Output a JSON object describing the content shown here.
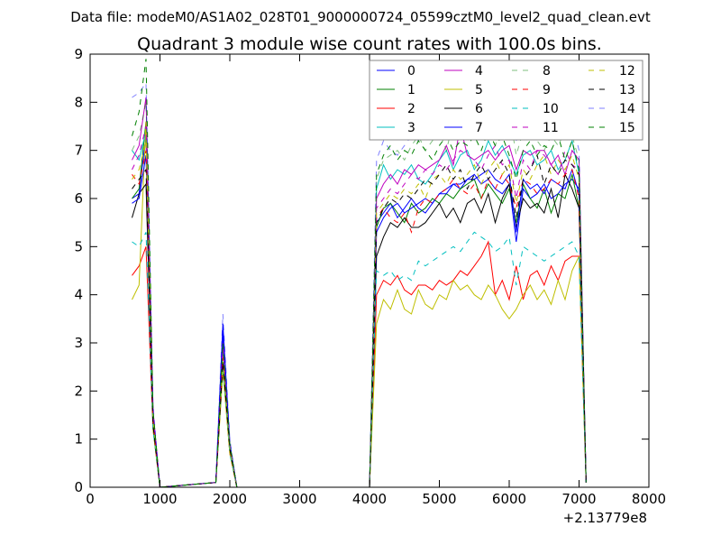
{
  "suptitle": "Data file: modeM0/AS1A02_028T01_9000000724_05599cztM0_level2_quad_clean.evt",
  "chart_data": {
    "type": "line",
    "title": "Quadrant 3 module wise count rates with 100.0s bins.",
    "xlabel": "",
    "ylabel": "",
    "xlim": [
      0,
      8000
    ],
    "ylim": [
      0,
      9
    ],
    "x_offset_label": "+2.13779e8",
    "xticks": [
      0,
      1000,
      2000,
      3000,
      4000,
      5000,
      6000,
      7000,
      8000
    ],
    "xtick_labels": [
      "0",
      "1000",
      "2000",
      "3000",
      "4000",
      "5000",
      "6000",
      "7000",
      "8000"
    ],
    "yticks": [
      0,
      1,
      2,
      3,
      4,
      5,
      6,
      7,
      8,
      9
    ],
    "ytick_labels": [
      "0",
      "1",
      "2",
      "3",
      "4",
      "5",
      "6",
      "7",
      "8",
      "9"
    ],
    "grid": false,
    "legend_placement": "top-right",
    "x": [
      600,
      700,
      800,
      900,
      1000,
      1800,
      1900,
      2000,
      2100,
      4000,
      4100,
      4200,
      4300,
      4400,
      4500,
      4600,
      4700,
      4800,
      4900,
      5000,
      5100,
      5200,
      5300,
      5400,
      5500,
      5600,
      5700,
      5800,
      5900,
      6000,
      6100,
      6200,
      6300,
      6400,
      6500,
      6600,
      6700,
      6800,
      6900,
      7000,
      7100
    ],
    "series": [
      {
        "name": "0",
        "color": "#0000ff",
        "dashed": false,
        "opacity": 1,
        "values": [
          6.0,
          6.1,
          7.3,
          1.5,
          0,
          0.1,
          3.2,
          0.9,
          0,
          0,
          5.5,
          5.7,
          5.9,
          5.6,
          5.8,
          6.0,
          5.8,
          5.7,
          5.9,
          6.1,
          6.2,
          6.3,
          6.2,
          6.4,
          6.5,
          6.3,
          6.4,
          6.2,
          6.1,
          6.3,
          5.1,
          6.2,
          6.0,
          6.1,
          6.3,
          6.0,
          6.1,
          6.3,
          6.4,
          6.2,
          0.1
        ]
      },
      {
        "name": "1",
        "color": "#008000",
        "dashed": false,
        "opacity": 1,
        "values": [
          6.0,
          6.2,
          7.6,
          1.3,
          0,
          0.1,
          2.6,
          0.8,
          0,
          0,
          5.4,
          5.8,
          5.9,
          5.7,
          5.5,
          5.9,
          5.7,
          5.8,
          6.0,
          5.9,
          6.1,
          6.0,
          6.2,
          6.3,
          6.4,
          6.0,
          6.3,
          6.1,
          5.9,
          6.2,
          5.5,
          6.3,
          6.0,
          5.8,
          6.2,
          5.7,
          6.1,
          6.0,
          6.5,
          5.8,
          0.1
        ]
      },
      {
        "name": "2",
        "color": "#ff0000",
        "dashed": false,
        "opacity": 1,
        "values": [
          4.4,
          4.6,
          5.0,
          1.2,
          0,
          0.1,
          2.5,
          0.7,
          0,
          0,
          4.0,
          4.3,
          4.2,
          4.4,
          4.1,
          4.0,
          4.2,
          4.2,
          4.1,
          4.3,
          4.2,
          4.3,
          4.5,
          4.4,
          4.6,
          4.8,
          5.1,
          4.0,
          4.3,
          3.9,
          4.6,
          3.9,
          4.4,
          4.5,
          4.2,
          4.6,
          4.3,
          4.7,
          4.8,
          4.8,
          0.1
        ]
      },
      {
        "name": "3",
        "color": "#00bfbf",
        "dashed": false,
        "opacity": 1,
        "values": [
          7.0,
          6.8,
          7.4,
          1.5,
          0,
          0.1,
          2.9,
          0.9,
          0,
          0,
          6.2,
          6.7,
          6.4,
          6.6,
          6.5,
          6.7,
          6.4,
          6.3,
          6.5,
          6.8,
          7.0,
          6.6,
          6.9,
          7.0,
          6.6,
          6.8,
          7.2,
          6.9,
          7.1,
          6.8,
          6.5,
          6.9,
          7.0,
          6.7,
          6.8,
          7.0,
          6.6,
          6.8,
          7.2,
          6.5,
          0.1
        ]
      },
      {
        "name": "4",
        "color": "#bf00bf",
        "dashed": false,
        "opacity": 1,
        "values": [
          6.8,
          7.1,
          8.1,
          1.6,
          0,
          0.1,
          3.0,
          0.9,
          0,
          0,
          6.0,
          6.3,
          6.5,
          6.3,
          6.6,
          6.5,
          6.7,
          6.6,
          6.7,
          6.8,
          7.1,
          6.7,
          7.5,
          6.9,
          6.8,
          6.9,
          7.0,
          6.8,
          7.0,
          7.1,
          6.6,
          7.0,
          6.9,
          7.0,
          7.0,
          6.7,
          6.9,
          6.5,
          7.0,
          6.8,
          0.1
        ]
      },
      {
        "name": "5",
        "color": "#bfbf00",
        "dashed": false,
        "opacity": 1,
        "values": [
          3.9,
          4.2,
          7.6,
          1.2,
          0,
          0.1,
          2.4,
          0.7,
          0,
          0,
          3.4,
          3.9,
          3.7,
          4.1,
          3.7,
          3.6,
          4.1,
          3.8,
          3.7,
          4.0,
          3.9,
          4.3,
          4.1,
          4.2,
          4.0,
          3.9,
          4.2,
          4.0,
          3.7,
          3.5,
          3.7,
          4.0,
          4.2,
          3.9,
          4.1,
          3.8,
          4.3,
          3.9,
          4.5,
          4.8,
          0.1
        ]
      },
      {
        "name": "6",
        "color": "#000000",
        "dashed": false,
        "opacity": 1,
        "values": [
          5.6,
          6.1,
          6.3,
          1.3,
          0,
          0.1,
          2.6,
          0.8,
          0,
          0,
          4.8,
          5.2,
          5.5,
          5.4,
          5.6,
          5.4,
          5.4,
          5.5,
          5.7,
          5.9,
          5.6,
          5.8,
          5.5,
          5.9,
          6.0,
          5.7,
          6.1,
          5.5,
          6.0,
          6.3,
          5.4,
          6.0,
          5.8,
          5.9,
          5.7,
          6.2,
          5.6,
          6.5,
          6.2,
          5.8,
          0.1
        ]
      },
      {
        "name": "7",
        "color": "#0000ff",
        "dashed": false,
        "opacity": 1,
        "values": [
          5.9,
          6.0,
          6.9,
          1.4,
          0,
          0.1,
          3.4,
          0.9,
          0,
          0,
          5.3,
          5.6,
          5.8,
          5.9,
          5.7,
          5.8,
          5.9,
          6.0,
          5.9,
          6.1,
          6.1,
          6.3,
          6.3,
          6.4,
          6.4,
          6.5,
          6.6,
          6.4,
          6.3,
          6.5,
          5.3,
          6.4,
          6.2,
          6.3,
          6.1,
          6.4,
          6.3,
          6.2,
          6.6,
          6.1,
          0.1
        ]
      },
      {
        "name": "8",
        "color": "#008000",
        "dashed": true,
        "opacity": 0.5,
        "values": [
          7.0,
          7.3,
          8.0,
          1.5,
          0,
          0.1,
          2.8,
          0.9,
          0,
          0,
          6.4,
          6.8,
          6.9,
          7.0,
          6.8,
          7.1,
          7.3,
          7.0,
          7.2,
          7.4,
          7.0,
          7.6,
          7.9,
          8.3,
          7.6,
          7.2,
          7.4,
          7.1,
          7.5,
          7.8,
          6.9,
          7.4,
          7.6,
          7.2,
          7.0,
          7.3,
          7.1,
          7.4,
          7.3,
          6.8,
          0.1
        ]
      },
      {
        "name": "9",
        "color": "#ff0000",
        "dashed": true,
        "opacity": 1,
        "values": [
          6.5,
          6.3,
          7.0,
          1.4,
          0,
          0.1,
          2.7,
          0.8,
          0,
          0,
          5.6,
          5.8,
          5.6,
          5.5,
          5.7,
          5.3,
          5.8,
          6.0,
          5.9,
          6.1,
          6.2,
          6.4,
          6.2,
          6.1,
          6.3,
          6.0,
          6.4,
          6.2,
          6.5,
          6.3,
          5.8,
          6.4,
          6.3,
          6.1,
          6.2,
          6.4,
          6.3,
          6.5,
          6.6,
          6.0,
          0.1
        ]
      },
      {
        "name": "10",
        "color": "#00bfbf",
        "dashed": true,
        "opacity": 1,
        "values": [
          5.1,
          5.0,
          5.3,
          1.2,
          0,
          0.1,
          2.5,
          0.7,
          0,
          0,
          4.5,
          4.4,
          4.5,
          4.3,
          4.4,
          4.3,
          4.7,
          4.6,
          4.7,
          4.8,
          4.9,
          5.0,
          4.9,
          5.1,
          5.3,
          5.2,
          5.1,
          4.9,
          5.0,
          5.2,
          4.2,
          5.0,
          4.9,
          4.8,
          4.7,
          4.8,
          4.9,
          5.0,
          5.1,
          4.8,
          0.1
        ]
      },
      {
        "name": "11",
        "color": "#bf00bf",
        "dashed": true,
        "opacity": 1,
        "values": [
          6.6,
          6.9,
          7.5,
          1.5,
          0,
          0.1,
          2.9,
          0.9,
          0,
          0,
          5.8,
          6.0,
          6.2,
          6.1,
          6.3,
          6.5,
          6.4,
          6.6,
          6.5,
          6.7,
          6.6,
          6.8,
          7.0,
          6.9,
          6.8,
          6.6,
          6.9,
          7.1,
          6.7,
          6.8,
          6.0,
          6.8,
          6.6,
          7.0,
          6.9,
          6.7,
          6.5,
          7.0,
          6.7,
          6.6,
          0.1
        ]
      },
      {
        "name": "12",
        "color": "#bfbf00",
        "dashed": true,
        "opacity": 1,
        "values": [
          6.4,
          6.6,
          7.2,
          1.4,
          0,
          0.1,
          2.6,
          0.8,
          0,
          0,
          5.7,
          5.9,
          6.1,
          6.0,
          6.2,
          6.1,
          6.3,
          6.0,
          6.4,
          6.5,
          6.3,
          6.6,
          6.4,
          6.5,
          6.7,
          6.3,
          6.6,
          6.8,
          6.5,
          6.7,
          5.9,
          6.6,
          6.4,
          6.7,
          6.9,
          6.5,
          6.8,
          6.6,
          6.9,
          6.4,
          0.1
        ]
      },
      {
        "name": "13",
        "color": "#000000",
        "dashed": true,
        "opacity": 1,
        "values": [
          6.2,
          6.4,
          6.6,
          1.3,
          0,
          0.1,
          2.6,
          0.8,
          0,
          0,
          5.5,
          5.8,
          6.0,
          5.9,
          6.1,
          6.0,
          6.2,
          6.4,
          6.3,
          6.5,
          6.7,
          6.4,
          6.6,
          6.2,
          6.5,
          6.7,
          6.4,
          6.6,
          6.8,
          6.5,
          5.6,
          6.4,
          6.6,
          6.9,
          6.3,
          6.7,
          6.5,
          6.8,
          6.7,
          6.5,
          0.1
        ]
      },
      {
        "name": "14",
        "color": "#0000ff",
        "dashed": true,
        "opacity": 0.5,
        "values": [
          8.1,
          8.2,
          8.4,
          1.7,
          0,
          0.1,
          3.6,
          1.0,
          0,
          0,
          6.8,
          7.2,
          7.0,
          6.9,
          7.1,
          7.3,
          7.2,
          7.4,
          7.6,
          7.8,
          7.5,
          7.9,
          8.2,
          8.0,
          7.8,
          7.6,
          7.8,
          7.9,
          8.0,
          8.2,
          7.2,
          7.8,
          8.1,
          8.0,
          7.9,
          7.7,
          8.1,
          8.1,
          7.6,
          7.0,
          0.1
        ]
      },
      {
        "name": "15",
        "color": "#008000",
        "dashed": true,
        "opacity": 1,
        "values": [
          7.3,
          7.8,
          8.9,
          1.6,
          0,
          0.1,
          3.0,
          0.9,
          0,
          0,
          6.5,
          6.9,
          7.1,
          6.8,
          7.0,
          6.9,
          7.2,
          7.0,
          6.8,
          7.1,
          7.3,
          7.0,
          7.2,
          7.1,
          7.3,
          7.0,
          7.4,
          7.1,
          7.3,
          6.9,
          6.4,
          7.0,
          7.2,
          6.9,
          7.1,
          7.0,
          7.3,
          6.8,
          7.2,
          6.6,
          0.1
        ]
      }
    ]
  }
}
